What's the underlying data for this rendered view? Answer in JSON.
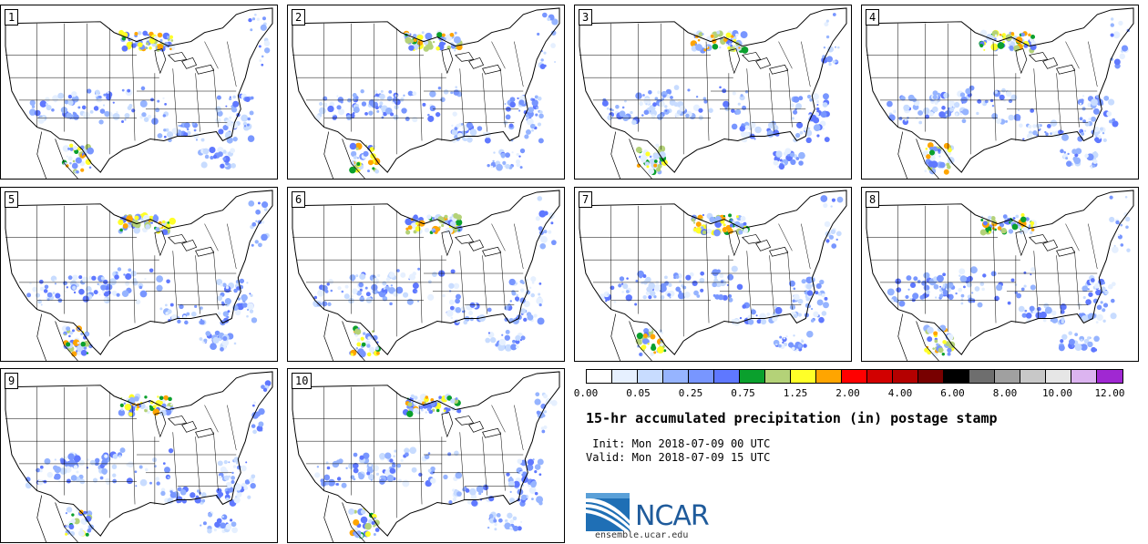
{
  "panels": [
    {
      "label": "1"
    },
    {
      "label": "2"
    },
    {
      "label": "3"
    },
    {
      "label": "4"
    },
    {
      "label": "5"
    },
    {
      "label": "6"
    },
    {
      "label": "7"
    },
    {
      "label": "8"
    },
    {
      "label": "9"
    },
    {
      "label": "10"
    }
  ],
  "colorbar": {
    "colors": [
      "#ffffff",
      "#e6f0ff",
      "#c8dcff",
      "#96b4ff",
      "#7896ff",
      "#5f78ff",
      "#0aa02d",
      "#b4d278",
      "#ffff28",
      "#ffa500",
      "#ff0000",
      "#d20000",
      "#b40000",
      "#780000",
      "#000000",
      "#6e6e6e",
      "#a0a0a0",
      "#c8c8c8",
      "#e6e6e6",
      "#dcb4f0",
      "#a028d2"
    ],
    "tick_labels": [
      "0.00",
      "0.05",
      "0.25",
      "0.75",
      "1.25",
      "2.00",
      "4.00",
      "6.00",
      "8.00",
      "10.00",
      "12.00"
    ]
  },
  "title": "15-hr accumulated precipitation (in) postage stamp",
  "init_line": " Init: Mon 2018-07-09 00 UTC",
  "valid_line": "Valid: Mon 2018-07-09 15 UTC",
  "logo": {
    "text": "NCAR",
    "url": "ensemble.ucar.edu"
  }
}
